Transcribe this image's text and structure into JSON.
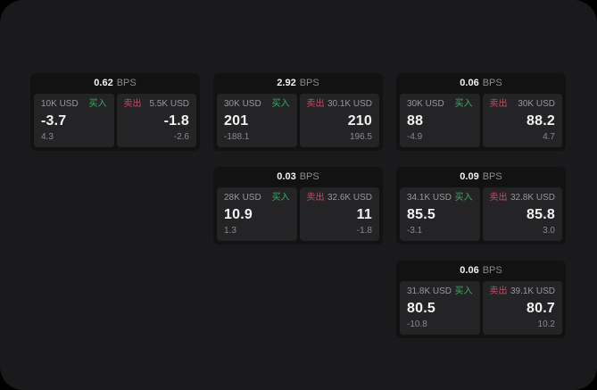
{
  "labels": {
    "bps_suffix": "BPS",
    "buy_label": "买入",
    "sell_label": "卖出",
    "currency_unit": "USD"
  },
  "colors": {
    "window_bg": "#1a1a1c",
    "card_bg": "#121213",
    "panel_bg": "#242426",
    "buy_green": "#3cab66",
    "sell_red": "#c24d62",
    "text_primary": "#f2f2f2",
    "text_secondary": "#98989b"
  },
  "cards": [
    {
      "col": 1,
      "row": 1,
      "bps": "0.62",
      "buy": {
        "amount": "10K USD",
        "value": "-3.7",
        "sub": "4.3"
      },
      "sell": {
        "amount": "5.5K USD",
        "value": "-1.8",
        "sub": "-2.6"
      }
    },
    {
      "col": 2,
      "row": 1,
      "bps": "2.92",
      "buy": {
        "amount": "30K USD",
        "value": "201",
        "sub": "-188.1"
      },
      "sell": {
        "amount": "30.1K USD",
        "value": "210",
        "sub": "196.5"
      }
    },
    {
      "col": 3,
      "row": 1,
      "bps": "0.06",
      "buy": {
        "amount": "30K USD",
        "value": "88",
        "sub": "-4.9"
      },
      "sell": {
        "amount": "30K USD",
        "value": "88.2",
        "sub": "4.7"
      }
    },
    {
      "col": 2,
      "row": 2,
      "bps": "0.03",
      "buy": {
        "amount": "28K USD",
        "value": "10.9",
        "sub": "1.3"
      },
      "sell": {
        "amount": "32.6K USD",
        "value": "11",
        "sub": "-1.8"
      }
    },
    {
      "col": 3,
      "row": 2,
      "bps": "0.09",
      "buy": {
        "amount": "34.1K USD",
        "value": "85.5",
        "sub": "-3.1"
      },
      "sell": {
        "amount": "32.8K USD",
        "value": "85.8",
        "sub": "3.0"
      }
    },
    {
      "col": 3,
      "row": 3,
      "bps": "0.06",
      "buy": {
        "amount": "31.8K USD",
        "value": "80.5",
        "sub": "-10.8"
      },
      "sell": {
        "amount": "39.1K USD",
        "value": "80.7",
        "sub": "10.2"
      }
    }
  ]
}
